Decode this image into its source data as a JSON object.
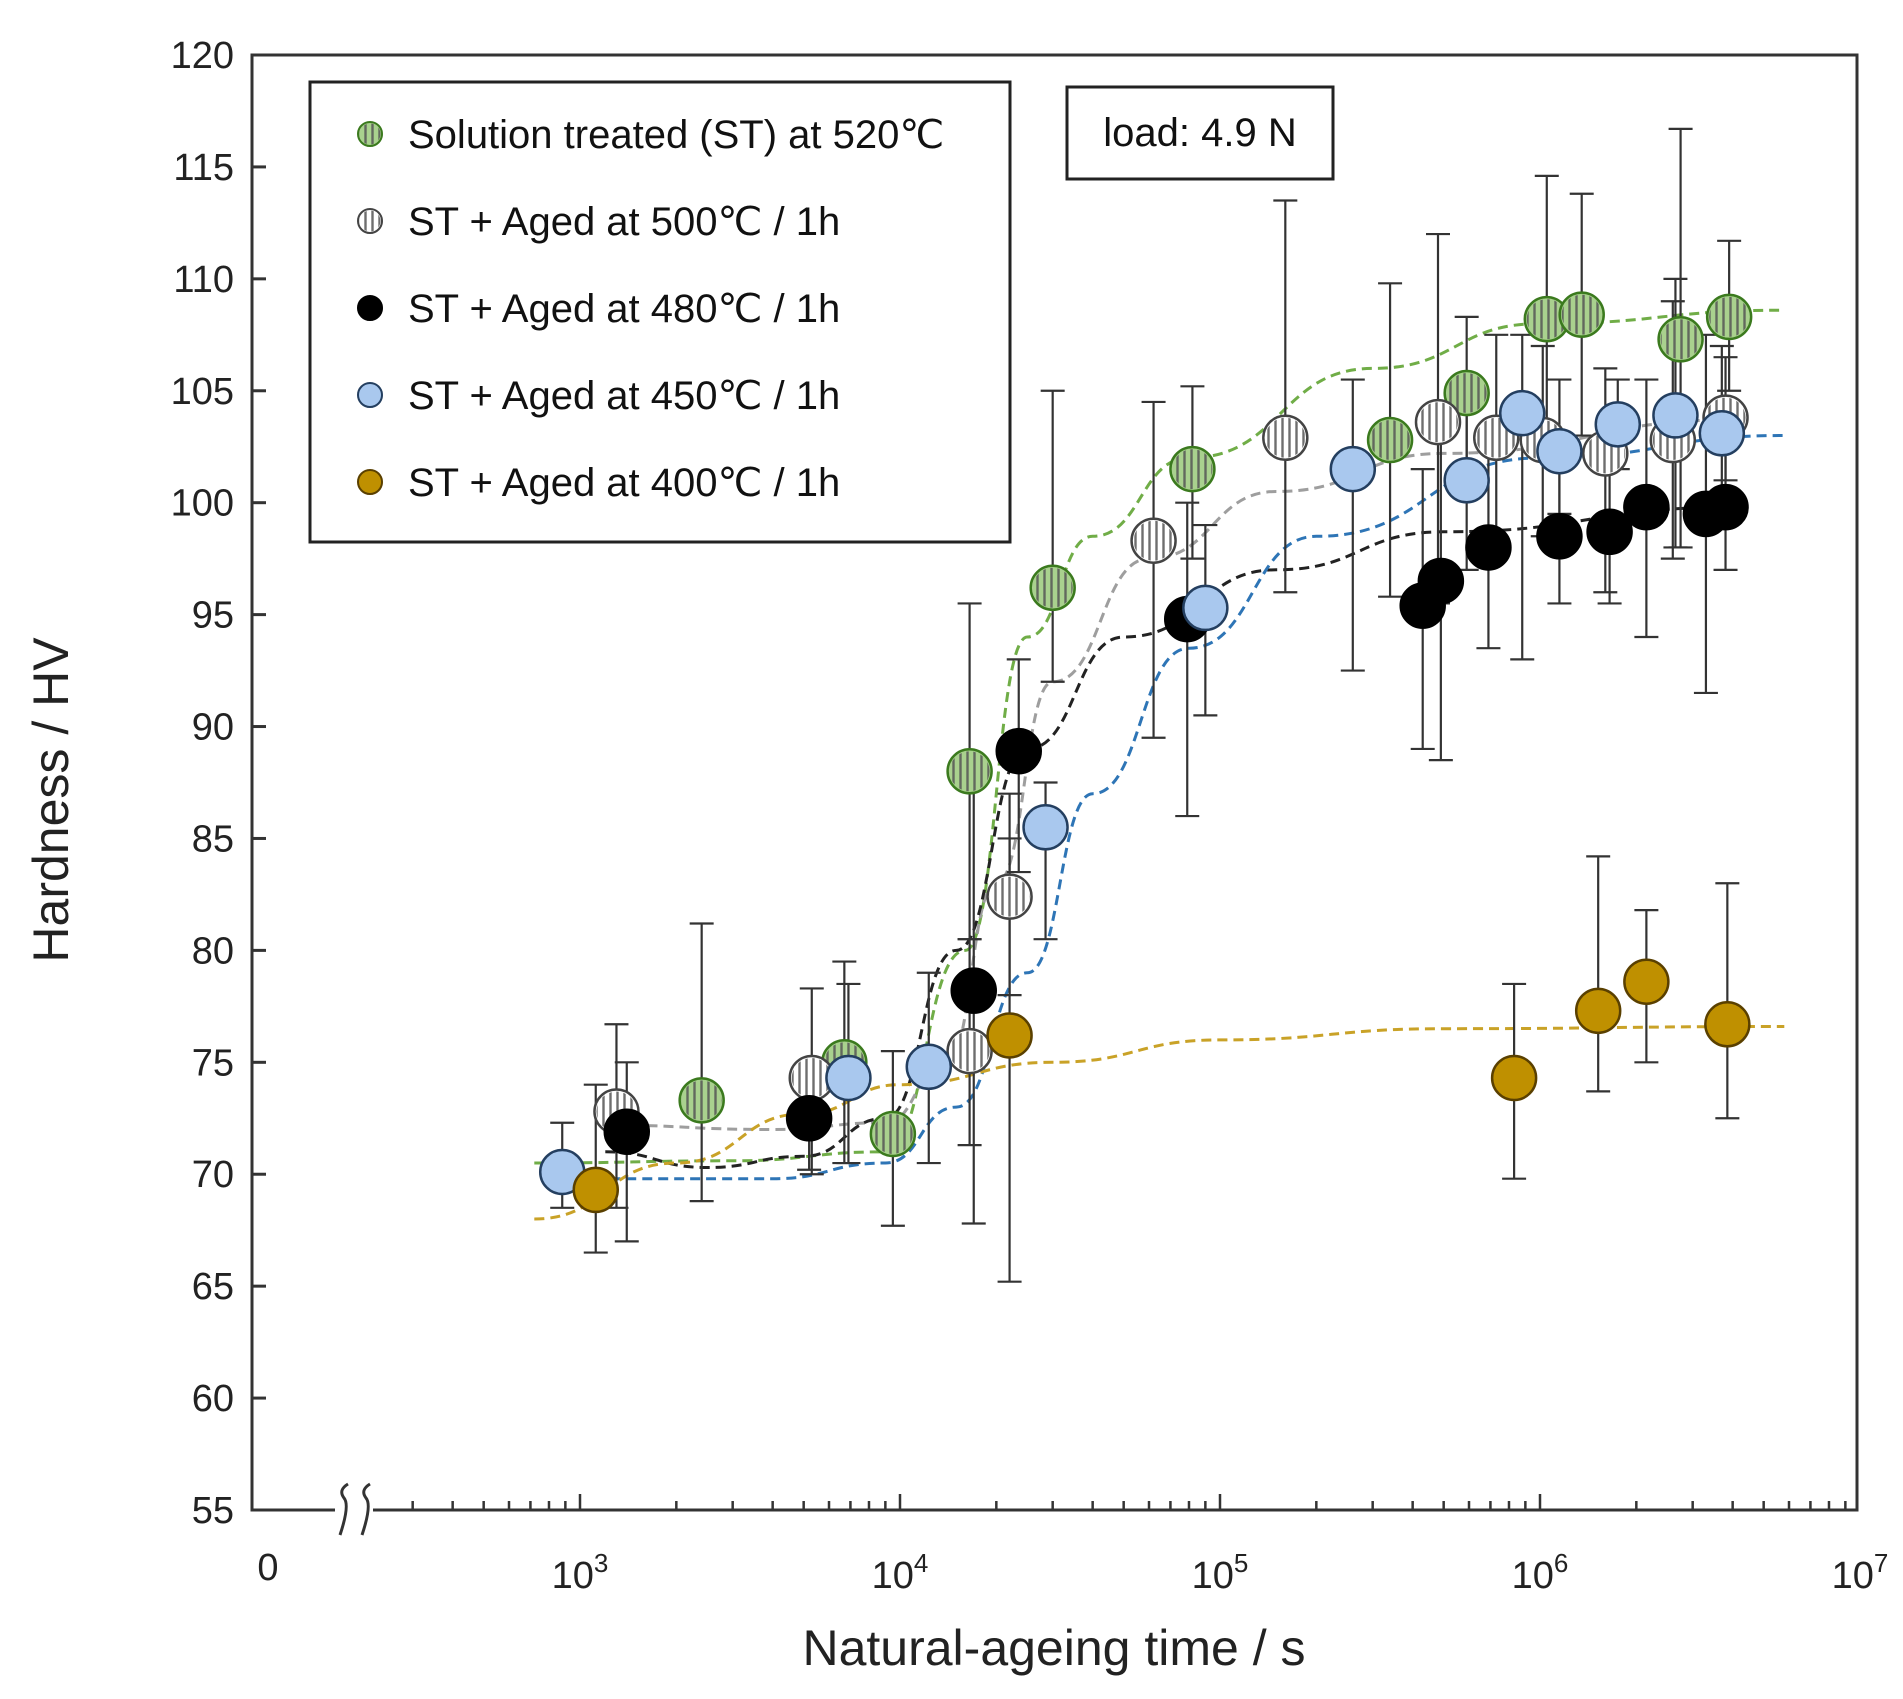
{
  "chart_data": {
    "type": "scatter",
    "xlabel": "Natural-ageing time / s",
    "ylabel": "Hardness / HV",
    "x_scale": "log",
    "x_break": true,
    "x_tick_zero": "0",
    "x_ticks": [
      {
        "base": "10",
        "exp": "3",
        "value": 1000
      },
      {
        "base": "10",
        "exp": "4",
        "value": 10000
      },
      {
        "base": "10",
        "exp": "5",
        "value": 100000
      },
      {
        "base": "10",
        "exp": "6",
        "value": 1000000
      },
      {
        "base": "10",
        "exp": "7",
        "value": 10000000
      }
    ],
    "ylim": [
      55,
      120
    ],
    "y_ticks": [
      "55",
      "60",
      "65",
      "70",
      "75",
      "80",
      "85",
      "90",
      "95",
      "100",
      "105",
      "110",
      "115",
      "120"
    ],
    "annotation": "load: 4.9 N",
    "legend_position": "top-left",
    "series": [
      {
        "name": "Solution treated (ST) at 520℃",
        "fill": "#a9d18e",
        "stroke": "#3b7a1e",
        "hatched": true,
        "trend_color": "#70ad47",
        "points": [
          {
            "x": 2400,
            "y": 73.3,
            "lo": 68.8,
            "hi": 81.2
          },
          {
            "x": 6700,
            "y": 75.0,
            "lo": 70.5,
            "hi": 79.5
          },
          {
            "x": 9500,
            "y": 71.8,
            "lo": 67.7,
            "hi": 75.5
          },
          {
            "x": 16500,
            "y": 88.0,
            "lo": 80.5,
            "hi": 95.5
          },
          {
            "x": 30000,
            "y": 96.2,
            "lo": 92.0,
            "hi": 105.0
          },
          {
            "x": 82000,
            "y": 101.5,
            "lo": 97.5,
            "hi": 105.2
          },
          {
            "x": 340000,
            "y": 102.8,
            "lo": 95.8,
            "hi": 109.8
          },
          {
            "x": 590000,
            "y": 104.9,
            "lo": 101.5,
            "hi": 108.3
          },
          {
            "x": 1050000,
            "y": 108.2,
            "lo": 102.0,
            "hi": 114.6
          },
          {
            "x": 1350000,
            "y": 108.4,
            "lo": 103.0,
            "hi": 113.8
          },
          {
            "x": 2750000,
            "y": 107.3,
            "lo": 98.0,
            "hi": 116.7
          },
          {
            "x": 3900000,
            "y": 108.3,
            "lo": 105.0,
            "hi": 111.7
          }
        ],
        "trend": [
          [
            720,
            70.5
          ],
          [
            3000,
            70.6
          ],
          [
            9000,
            71.0
          ],
          [
            16000,
            80.0
          ],
          [
            25000,
            94.0
          ],
          [
            40000,
            98.5
          ],
          [
            80000,
            102.0
          ],
          [
            300000,
            106.0
          ],
          [
            1000000,
            108.0
          ],
          [
            5800000,
            108.6
          ]
        ]
      },
      {
        "name": "ST + Aged at 500℃ / 1h",
        "fill": "#ffffff",
        "stroke": "#444444",
        "hatched": true,
        "trend_color": "#9e9e9e",
        "points": [
          {
            "x": 1300,
            "y": 72.8,
            "lo": 68.5,
            "hi": 76.7
          },
          {
            "x": 5300,
            "y": 74.3,
            "lo": 70.0,
            "hi": 78.3
          },
          {
            "x": 16500,
            "y": 75.5,
            "lo": 71.3,
            "hi": 80.5
          },
          {
            "x": 22000,
            "y": 82.4,
            "lo": 78.0,
            "hi": 87.0
          },
          {
            "x": 62000,
            "y": 98.3,
            "lo": 89.5,
            "hi": 104.5
          },
          {
            "x": 160000,
            "y": 102.9,
            "lo": 96.0,
            "hi": 113.5
          },
          {
            "x": 480000,
            "y": 103.6,
            "lo": 95.5,
            "hi": 112.0
          },
          {
            "x": 730000,
            "y": 102.9,
            "lo": 98.0,
            "hi": 107.5
          },
          {
            "x": 1020000,
            "y": 102.8,
            "lo": 98.5,
            "hi": 107.0
          },
          {
            "x": 1600000,
            "y": 102.2,
            "lo": 96.0,
            "hi": 106.0
          },
          {
            "x": 2600000,
            "y": 102.8,
            "lo": 97.5,
            "hi": 109.0
          },
          {
            "x": 3800000,
            "y": 103.8,
            "lo": 101.0,
            "hi": 106.5
          }
        ],
        "trend": [
          [
            1150,
            72.2
          ],
          [
            4000,
            72.0
          ],
          [
            9000,
            72.3
          ],
          [
            14000,
            75.0
          ],
          [
            20000,
            83.0
          ],
          [
            30000,
            92.0
          ],
          [
            60000,
            97.5
          ],
          [
            150000,
            100.5
          ],
          [
            500000,
            102.2
          ],
          [
            4000000,
            103.7
          ]
        ]
      },
      {
        "name": "ST + Aged at 480℃ / 1h",
        "fill": "#000000",
        "stroke": "#000000",
        "hatched": false,
        "trend_color": "#222222",
        "points": [
          {
            "x": 1400,
            "y": 71.9,
            "lo": 67.0,
            "hi": 75.0
          },
          {
            "x": 5200,
            "y": 72.5,
            "lo": 70.2,
            "hi": 74.8
          },
          {
            "x": 17000,
            "y": 78.2,
            "lo": 67.8,
            "hi": 88.5
          },
          {
            "x": 23500,
            "y": 88.9,
            "lo": 83.5,
            "hi": 93.0
          },
          {
            "x": 79000,
            "y": 94.8,
            "lo": 86.0,
            "hi": 100.0
          },
          {
            "x": 430000,
            "y": 95.4,
            "lo": 89.0,
            "hi": 101.5
          },
          {
            "x": 490000,
            "y": 96.5,
            "lo": 88.5,
            "hi": 103.0
          },
          {
            "x": 690000,
            "y": 98.0,
            "lo": 93.5,
            "hi": 102.5
          },
          {
            "x": 1150000,
            "y": 98.5,
            "lo": 95.5,
            "hi": 101.5
          },
          {
            "x": 1650000,
            "y": 98.7,
            "lo": 95.5,
            "hi": 102.0
          },
          {
            "x": 2150000,
            "y": 99.8,
            "lo": 94.0,
            "hi": 105.5
          },
          {
            "x": 3300000,
            "y": 99.5,
            "lo": 91.5,
            "hi": 107.5
          },
          {
            "x": 3800000,
            "y": 99.8,
            "lo": 97.0,
            "hi": 102.5
          }
        ],
        "trend": [
          [
            1200,
            71.0
          ],
          [
            2500,
            70.3
          ],
          [
            5000,
            70.8
          ],
          [
            9000,
            72.5
          ],
          [
            15000,
            80.0
          ],
          [
            25000,
            89.0
          ],
          [
            50000,
            94.0
          ],
          [
            150000,
            97.0
          ],
          [
            500000,
            98.7
          ],
          [
            4000000,
            99.8
          ]
        ]
      },
      {
        "name": "ST + Aged at 450℃ / 1h",
        "fill": "#a9c8ee",
        "stroke": "#243f60",
        "hatched": false,
        "trend_color": "#2e75b6",
        "points": [
          {
            "x": 880,
            "y": 70.1,
            "lo": 68.5,
            "hi": 72.3
          },
          {
            "x": 6900,
            "y": 74.3,
            "lo": 70.5,
            "hi": 78.5
          },
          {
            "x": 12300,
            "y": 74.8,
            "lo": 70.5,
            "hi": 79.0
          },
          {
            "x": 28500,
            "y": 85.5,
            "lo": 80.5,
            "hi": 87.5
          },
          {
            "x": 90000,
            "y": 95.3,
            "lo": 90.5,
            "hi": 99.0
          },
          {
            "x": 260000,
            "y": 101.5,
            "lo": 92.5,
            "hi": 105.5
          },
          {
            "x": 590000,
            "y": 101.0,
            "lo": 97.0,
            "hi": 105.0
          },
          {
            "x": 880000,
            "y": 104.0,
            "lo": 93.0,
            "hi": 107.5
          },
          {
            "x": 1150000,
            "y": 102.3,
            "lo": 99.5,
            "hi": 105.5
          },
          {
            "x": 1750000,
            "y": 103.5,
            "lo": 101.5,
            "hi": 105.5
          },
          {
            "x": 2650000,
            "y": 103.9,
            "lo": 98.0,
            "hi": 110.0
          },
          {
            "x": 3700000,
            "y": 103.1,
            "lo": 99.5,
            "hi": 107.0
          }
        ],
        "trend": [
          [
            880,
            69.8
          ],
          [
            4000,
            69.8
          ],
          [
            9000,
            70.5
          ],
          [
            15000,
            73.0
          ],
          [
            25000,
            79.0
          ],
          [
            40000,
            87.0
          ],
          [
            80000,
            93.5
          ],
          [
            200000,
            98.5
          ],
          [
            1000000,
            102.0
          ],
          [
            5800000,
            103.0
          ]
        ]
      },
      {
        "name": "ST + Aged at 400℃ / 1h",
        "fill": "#bf9000",
        "stroke": "#5a4000",
        "hatched": false,
        "trend_color": "#c9a227",
        "points": [
          {
            "x": 1120,
            "y": 69.3,
            "lo": 66.5,
            "hi": 74.0
          },
          {
            "x": 22000,
            "y": 76.2,
            "lo": 65.2,
            "hi": 85.0
          },
          {
            "x": 830000,
            "y": 74.3,
            "lo": 69.8,
            "hi": 78.5
          },
          {
            "x": 1520000,
            "y": 77.3,
            "lo": 73.7,
            "hi": 84.2
          },
          {
            "x": 2150000,
            "y": 78.6,
            "lo": 75.0,
            "hi": 81.8
          },
          {
            "x": 3850000,
            "y": 76.7,
            "lo": 72.5,
            "hi": 83.0
          }
        ],
        "trend": [
          [
            720,
            68.0
          ],
          [
            2000,
            70.5
          ],
          [
            5000,
            72.7
          ],
          [
            10000,
            74.0
          ],
          [
            30000,
            75.0
          ],
          [
            100000,
            76.0
          ],
          [
            500000,
            76.5
          ],
          [
            5800000,
            76.6
          ]
        ]
      }
    ]
  }
}
